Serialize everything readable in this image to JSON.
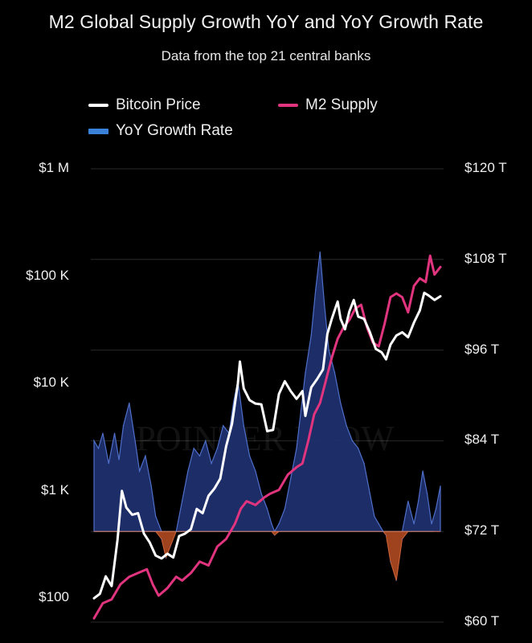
{
  "title": "M2 Global Supply Growth YoY and YoY Growth Rate",
  "subtitle": "Data from the top 21 central banks",
  "legend": {
    "bitcoin": "Bitcoin Price",
    "m2": "M2 Supply",
    "yoy": "YoY Growth Rate"
  },
  "watermark": "POINTER FLOW",
  "colors": {
    "background": "#000000",
    "bitcoin": "#ffffff",
    "m2": "#e0347e",
    "yoy_positive": "#1f2f6e",
    "yoy_positive_edge": "#4f6fc9",
    "yoy_negative": "#b04a22",
    "legend_yoy": "#3a82d9",
    "grid": "#2a2a2a"
  },
  "chart_data": {
    "type": "line",
    "x_range": [
      2013.0,
      2024.8
    ],
    "y_left": {
      "scale": "log",
      "range": [
        60,
        1000000
      ],
      "ticks": [
        100,
        1000,
        10000,
        100000,
        1000000
      ],
      "tick_labels": [
        "$100",
        "$1 K",
        "$10 K",
        "$100 K",
        "$1 M"
      ]
    },
    "y_right": {
      "scale": "linear",
      "range": [
        60,
        120
      ],
      "ticks": [
        60,
        72,
        84,
        96,
        108,
        120
      ],
      "tick_labels": [
        "$60 T",
        "$72 T",
        "$84 T",
        "$96 T",
        "$108 T",
        "$120 T"
      ]
    },
    "series": [
      {
        "name": "Bitcoin Price",
        "axis": "left",
        "x": [
          2013.0,
          2013.2,
          2013.4,
          2013.6,
          2013.8,
          2013.95,
          2014.1,
          2014.3,
          2014.5,
          2014.7,
          2014.9,
          2015.1,
          2015.3,
          2015.5,
          2015.7,
          2015.9,
          2016.1,
          2016.3,
          2016.5,
          2016.7,
          2016.9,
          2017.1,
          2017.3,
          2017.5,
          2017.7,
          2017.9,
          2017.97,
          2018.1,
          2018.3,
          2018.5,
          2018.7,
          2018.9,
          2019.1,
          2019.3,
          2019.5,
          2019.7,
          2019.9,
          2020.1,
          2020.2,
          2020.4,
          2020.6,
          2020.8,
          2020.95,
          2021.1,
          2021.3,
          2021.4,
          2021.55,
          2021.7,
          2021.85,
          2022.0,
          2022.2,
          2022.4,
          2022.6,
          2022.8,
          2022.95,
          2023.1,
          2023.3,
          2023.5,
          2023.7,
          2023.9,
          2024.1,
          2024.25,
          2024.4,
          2024.6,
          2024.8
        ],
        "values": [
          100,
          110,
          160,
          130,
          350,
          1000,
          700,
          600,
          620,
          400,
          330,
          250,
          235,
          260,
          240,
          380,
          400,
          440,
          680,
          620,
          900,
          1050,
          1300,
          2600,
          4200,
          10000,
          16000,
          9000,
          7000,
          6500,
          6400,
          3600,
          3700,
          8000,
          10500,
          8500,
          7200,
          8500,
          5000,
          9200,
          11000,
          13500,
          29000,
          40000,
          58000,
          40000,
          32000,
          47000,
          60000,
          42000,
          40000,
          30000,
          21000,
          19500,
          16800,
          23000,
          28000,
          30000,
          27000,
          37000,
          48000,
          70000,
          66000,
          60000,
          65000
        ]
      },
      {
        "name": "M2 Supply",
        "axis": "right",
        "x": [
          2013.0,
          2013.3,
          2013.6,
          2013.9,
          2014.2,
          2014.5,
          2014.8,
          2015.0,
          2015.2,
          2015.5,
          2015.8,
          2016.0,
          2016.3,
          2016.6,
          2016.9,
          2017.2,
          2017.5,
          2017.8,
          2018.0,
          2018.2,
          2018.5,
          2018.8,
          2019.0,
          2019.3,
          2019.6,
          2019.9,
          2020.1,
          2020.3,
          2020.5,
          2020.7,
          2020.9,
          2021.1,
          2021.3,
          2021.5,
          2021.7,
          2021.9,
          2022.1,
          2022.3,
          2022.5,
          2022.7,
          2022.9,
          2023.1,
          2023.3,
          2023.5,
          2023.7,
          2023.9,
          2024.1,
          2024.3,
          2024.45,
          2024.6,
          2024.8
        ],
        "values": [
          60.5,
          62.5,
          63.0,
          65.0,
          66.0,
          66.5,
          67.0,
          65.0,
          63.5,
          64.5,
          66.0,
          65.5,
          66.5,
          68.0,
          67.5,
          70.0,
          71.0,
          73.0,
          75.0,
          76.0,
          75.5,
          76.5,
          77.0,
          77.5,
          79.5,
          80.5,
          81.0,
          84.0,
          87.5,
          89.0,
          92.0,
          95.0,
          97.5,
          99.0,
          100.0,
          101.5,
          102.0,
          99.0,
          97.0,
          96.5,
          99.5,
          103.0,
          103.5,
          103.0,
          101.0,
          104.5,
          105.5,
          105.0,
          108.5,
          106.0,
          107.0
        ]
      },
      {
        "name": "YoY Growth Rate",
        "type": "area",
        "axis": "right",
        "baseline": 72,
        "x": [
          2013.0,
          2013.15,
          2013.3,
          2013.5,
          2013.7,
          2013.85,
          2014.0,
          2014.2,
          2014.4,
          2014.55,
          2014.75,
          2014.95,
          2015.1,
          2015.3,
          2015.45,
          2015.6,
          2015.8,
          2016.0,
          2016.2,
          2016.4,
          2016.6,
          2016.8,
          2017.0,
          2017.2,
          2017.4,
          2017.6,
          2017.75,
          2017.9,
          2018.1,
          2018.3,
          2018.5,
          2018.7,
          2018.9,
          2019.05,
          2019.15,
          2019.3,
          2019.5,
          2019.7,
          2019.9,
          2020.05,
          2020.2,
          2020.4,
          2020.55,
          2020.7,
          2020.85,
          2021.0,
          2021.2,
          2021.4,
          2021.6,
          2021.8,
          2022.0,
          2022.2,
          2022.4,
          2022.55,
          2022.7,
          2022.85,
          2022.95,
          2023.1,
          2023.3,
          2023.5,
          2023.7,
          2023.9,
          2024.05,
          2024.2,
          2024.35,
          2024.5,
          2024.65,
          2024.8
        ],
        "values": [
          84.0,
          83.0,
          85.0,
          81.0,
          85.0,
          81.5,
          86.0,
          89.0,
          84.0,
          80.0,
          82.0,
          78.0,
          74.0,
          71.0,
          68.5,
          70.0,
          72.0,
          76.0,
          80.0,
          83.0,
          82.0,
          84.0,
          81.0,
          83.0,
          86.0,
          85.0,
          89.0,
          92.0,
          86.0,
          82.0,
          80.0,
          77.0,
          75.0,
          73.0,
          71.5,
          73.0,
          75.0,
          79.0,
          83.0,
          88.0,
          93.0,
          98.0,
          104.0,
          109.0,
          102.0,
          96.0,
          93.0,
          89.0,
          86.0,
          84.0,
          83.0,
          81.0,
          77.0,
          74.0,
          73.0,
          72.0,
          71.5,
          68.0,
          65.5,
          71.0,
          76.0,
          73.0,
          76.0,
          80.0,
          77.0,
          73.0,
          75.0,
          78.0
        ]
      }
    ],
    "grid": true,
    "legend_position": "top"
  }
}
